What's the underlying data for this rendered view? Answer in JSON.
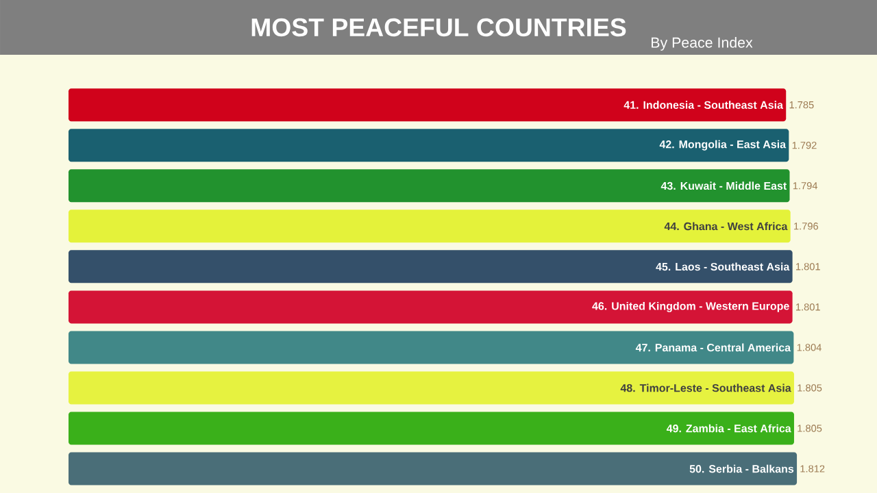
{
  "chart_data": {
    "type": "bar",
    "orientation": "horizontal",
    "title": "MOST PEACEFUL COUNTRIES",
    "subtitle": "By Peace Index",
    "categories": [
      "41. Indonesia - Southeast Asia",
      "42. Mongolia - East Asia",
      "43. Kuwait - Middle East",
      "44. Ghana - West Africa",
      "45. Laos - Southeast Asia",
      "46. United Kingdom - Western Europe",
      "47. Panama - Central America",
      "48. Timor-Leste - Southeast Asia",
      "49. Zambia - East Africa",
      "50. Serbia - Balkans"
    ],
    "values": [
      1.785,
      1.792,
      1.794,
      1.796,
      1.801,
      1.801,
      1.804,
      1.805,
      1.805,
      1.812
    ],
    "colors": [
      "#d0021b",
      "#1a6070",
      "#22922e",
      "#e4f23a",
      "#34506a",
      "#d41436",
      "#418888",
      "#e6f240",
      "#3ab01a",
      "#4a6e78"
    ],
    "data_labels": true
  }
}
